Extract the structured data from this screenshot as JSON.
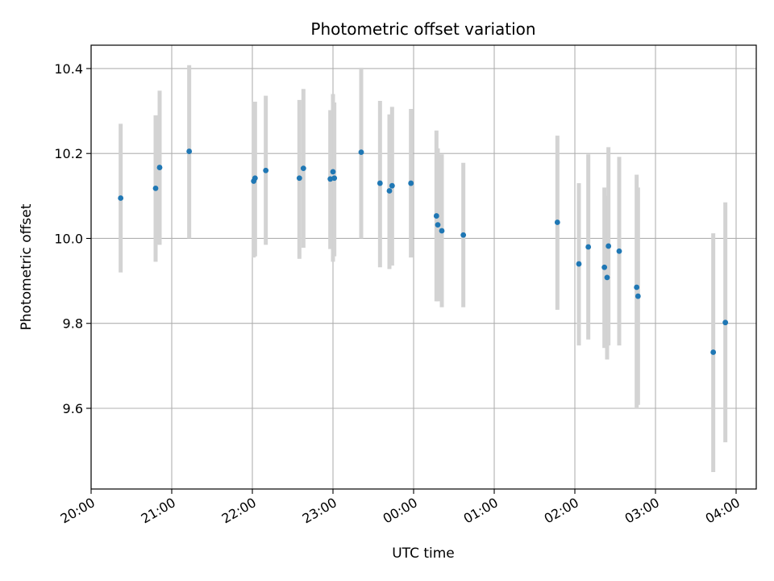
{
  "chart_data": {
    "type": "scatter",
    "title": "Photometric offset variation",
    "xlabel": "UTC time",
    "ylabel": "Photometric offset",
    "xlim": [
      "20:00",
      "04:15"
    ],
    "ylim": [
      9.41,
      10.455
    ],
    "x_ticks": [
      "20:00",
      "21:00",
      "22:00",
      "23:00",
      "00:00",
      "01:00",
      "02:00",
      "03:00",
      "04:00"
    ],
    "y_ticks": [
      "9.6",
      "9.8",
      "10.0",
      "10.2",
      "10.4"
    ],
    "grid": true,
    "colors": {
      "points": "#1f77b4",
      "errorbars": "#d3d3d3",
      "grid": "#b0b0b0"
    },
    "points": [
      {
        "x": "20:22",
        "y": 10.095,
        "low": 9.92,
        "high": 10.27
      },
      {
        "x": "20:48",
        "y": 10.118,
        "low": 9.945,
        "high": 10.29
      },
      {
        "x": "20:51",
        "y": 10.167,
        "low": 9.985,
        "high": 10.348
      },
      {
        "x": "21:13",
        "y": 10.205,
        "low": 10.0,
        "high": 10.408
      },
      {
        "x": "22:01",
        "y": 10.135,
        "low": 9.955,
        "high": 10.322
      },
      {
        "x": "22:02",
        "y": 10.142,
        "low": 9.958,
        "high": 10.322
      },
      {
        "x": "22:10",
        "y": 10.16,
        "low": 9.985,
        "high": 10.336
      },
      {
        "x": "22:35",
        "y": 10.142,
        "low": 9.952,
        "high": 10.326
      },
      {
        "x": "22:38",
        "y": 10.165,
        "low": 9.978,
        "high": 10.352
      },
      {
        "x": "22:58",
        "y": 10.14,
        "low": 9.975,
        "high": 10.302
      },
      {
        "x": "23:00",
        "y": 10.157,
        "low": 9.945,
        "high": 10.34
      },
      {
        "x": "23:01",
        "y": 10.142,
        "low": 9.958,
        "high": 10.32
      },
      {
        "x": "23:21",
        "y": 10.203,
        "low": 10.0,
        "high": 10.402
      },
      {
        "x": "23:35",
        "y": 10.13,
        "low": 9.932,
        "high": 10.324
      },
      {
        "x": "23:42",
        "y": 10.112,
        "low": 9.928,
        "high": 10.292
      },
      {
        "x": "23:44",
        "y": 10.124,
        "low": 9.936,
        "high": 10.31
      },
      {
        "x": "23:58",
        "y": 10.13,
        "low": 9.955,
        "high": 10.305
      },
      {
        "x": "00:17",
        "y": 10.053,
        "low": 9.852,
        "high": 10.254
      },
      {
        "x": "00:18",
        "y": 10.032,
        "low": 9.852,
        "high": 10.212
      },
      {
        "x": "00:21",
        "y": 10.018,
        "low": 9.838,
        "high": 10.198
      },
      {
        "x": "00:37",
        "y": 10.008,
        "low": 9.838,
        "high": 10.178
      },
      {
        "x": "01:47",
        "y": 10.038,
        "low": 9.832,
        "high": 10.242
      },
      {
        "x": "02:03",
        "y": 9.94,
        "low": 9.748,
        "high": 10.13
      },
      {
        "x": "02:10",
        "y": 9.98,
        "low": 9.762,
        "high": 10.198
      },
      {
        "x": "02:22",
        "y": 9.932,
        "low": 9.742,
        "high": 10.12
      },
      {
        "x": "02:24",
        "y": 9.908,
        "low": 9.715,
        "high": 10.1
      },
      {
        "x": "02:25",
        "y": 9.982,
        "low": 9.748,
        "high": 10.215
      },
      {
        "x": "02:33",
        "y": 9.97,
        "low": 9.748,
        "high": 10.192
      },
      {
        "x": "02:46",
        "y": 9.885,
        "low": 9.602,
        "high": 10.15
      },
      {
        "x": "02:47",
        "y": 9.864,
        "low": 9.608,
        "high": 10.12
      },
      {
        "x": "03:43",
        "y": 9.732,
        "low": 9.45,
        "high": 10.012
      },
      {
        "x": "03:52",
        "y": 9.802,
        "low": 9.52,
        "high": 10.085
      }
    ]
  }
}
